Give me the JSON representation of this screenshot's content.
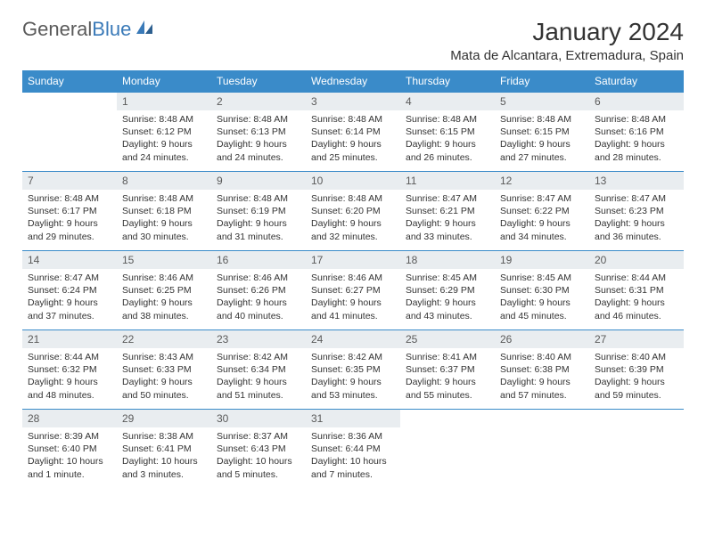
{
  "header": {
    "logo_general": "General",
    "logo_blue": "Blue",
    "month_title": "January 2024",
    "location": "Mata de Alcantara, Extremadura, Spain"
  },
  "colors": {
    "header_bg": "#3a8bc9",
    "header_text": "#ffffff",
    "daynum_bg": "#e9edf0",
    "daynum_text": "#5a5a5a",
    "border": "#3a8bc9",
    "logo_gray": "#5a5a5a",
    "logo_blue": "#3a7ab8"
  },
  "day_labels": [
    "Sunday",
    "Monday",
    "Tuesday",
    "Wednesday",
    "Thursday",
    "Friday",
    "Saturday"
  ],
  "weeks": [
    [
      null,
      {
        "n": "1",
        "sr": "8:48 AM",
        "ss": "6:12 PM",
        "dl": "9 hours and 24 minutes."
      },
      {
        "n": "2",
        "sr": "8:48 AM",
        "ss": "6:13 PM",
        "dl": "9 hours and 24 minutes."
      },
      {
        "n": "3",
        "sr": "8:48 AM",
        "ss": "6:14 PM",
        "dl": "9 hours and 25 minutes."
      },
      {
        "n": "4",
        "sr": "8:48 AM",
        "ss": "6:15 PM",
        "dl": "9 hours and 26 minutes."
      },
      {
        "n": "5",
        "sr": "8:48 AM",
        "ss": "6:15 PM",
        "dl": "9 hours and 27 minutes."
      },
      {
        "n": "6",
        "sr": "8:48 AM",
        "ss": "6:16 PM",
        "dl": "9 hours and 28 minutes."
      }
    ],
    [
      {
        "n": "7",
        "sr": "8:48 AM",
        "ss": "6:17 PM",
        "dl": "9 hours and 29 minutes."
      },
      {
        "n": "8",
        "sr": "8:48 AM",
        "ss": "6:18 PM",
        "dl": "9 hours and 30 minutes."
      },
      {
        "n": "9",
        "sr": "8:48 AM",
        "ss": "6:19 PM",
        "dl": "9 hours and 31 minutes."
      },
      {
        "n": "10",
        "sr": "8:48 AM",
        "ss": "6:20 PM",
        "dl": "9 hours and 32 minutes."
      },
      {
        "n": "11",
        "sr": "8:47 AM",
        "ss": "6:21 PM",
        "dl": "9 hours and 33 minutes."
      },
      {
        "n": "12",
        "sr": "8:47 AM",
        "ss": "6:22 PM",
        "dl": "9 hours and 34 minutes."
      },
      {
        "n": "13",
        "sr": "8:47 AM",
        "ss": "6:23 PM",
        "dl": "9 hours and 36 minutes."
      }
    ],
    [
      {
        "n": "14",
        "sr": "8:47 AM",
        "ss": "6:24 PM",
        "dl": "9 hours and 37 minutes."
      },
      {
        "n": "15",
        "sr": "8:46 AM",
        "ss": "6:25 PM",
        "dl": "9 hours and 38 minutes."
      },
      {
        "n": "16",
        "sr": "8:46 AM",
        "ss": "6:26 PM",
        "dl": "9 hours and 40 minutes."
      },
      {
        "n": "17",
        "sr": "8:46 AM",
        "ss": "6:27 PM",
        "dl": "9 hours and 41 minutes."
      },
      {
        "n": "18",
        "sr": "8:45 AM",
        "ss": "6:29 PM",
        "dl": "9 hours and 43 minutes."
      },
      {
        "n": "19",
        "sr": "8:45 AM",
        "ss": "6:30 PM",
        "dl": "9 hours and 45 minutes."
      },
      {
        "n": "20",
        "sr": "8:44 AM",
        "ss": "6:31 PM",
        "dl": "9 hours and 46 minutes."
      }
    ],
    [
      {
        "n": "21",
        "sr": "8:44 AM",
        "ss": "6:32 PM",
        "dl": "9 hours and 48 minutes."
      },
      {
        "n": "22",
        "sr": "8:43 AM",
        "ss": "6:33 PM",
        "dl": "9 hours and 50 minutes."
      },
      {
        "n": "23",
        "sr": "8:42 AM",
        "ss": "6:34 PM",
        "dl": "9 hours and 51 minutes."
      },
      {
        "n": "24",
        "sr": "8:42 AM",
        "ss": "6:35 PM",
        "dl": "9 hours and 53 minutes."
      },
      {
        "n": "25",
        "sr": "8:41 AM",
        "ss": "6:37 PM",
        "dl": "9 hours and 55 minutes."
      },
      {
        "n": "26",
        "sr": "8:40 AM",
        "ss": "6:38 PM",
        "dl": "9 hours and 57 minutes."
      },
      {
        "n": "27",
        "sr": "8:40 AM",
        "ss": "6:39 PM",
        "dl": "9 hours and 59 minutes."
      }
    ],
    [
      {
        "n": "28",
        "sr": "8:39 AM",
        "ss": "6:40 PM",
        "dl": "10 hours and 1 minute."
      },
      {
        "n": "29",
        "sr": "8:38 AM",
        "ss": "6:41 PM",
        "dl": "10 hours and 3 minutes."
      },
      {
        "n": "30",
        "sr": "8:37 AM",
        "ss": "6:43 PM",
        "dl": "10 hours and 5 minutes."
      },
      {
        "n": "31",
        "sr": "8:36 AM",
        "ss": "6:44 PM",
        "dl": "10 hours and 7 minutes."
      },
      null,
      null,
      null
    ]
  ],
  "labels": {
    "sunrise": "Sunrise: ",
    "sunset": "Sunset: ",
    "daylight": "Daylight: "
  }
}
